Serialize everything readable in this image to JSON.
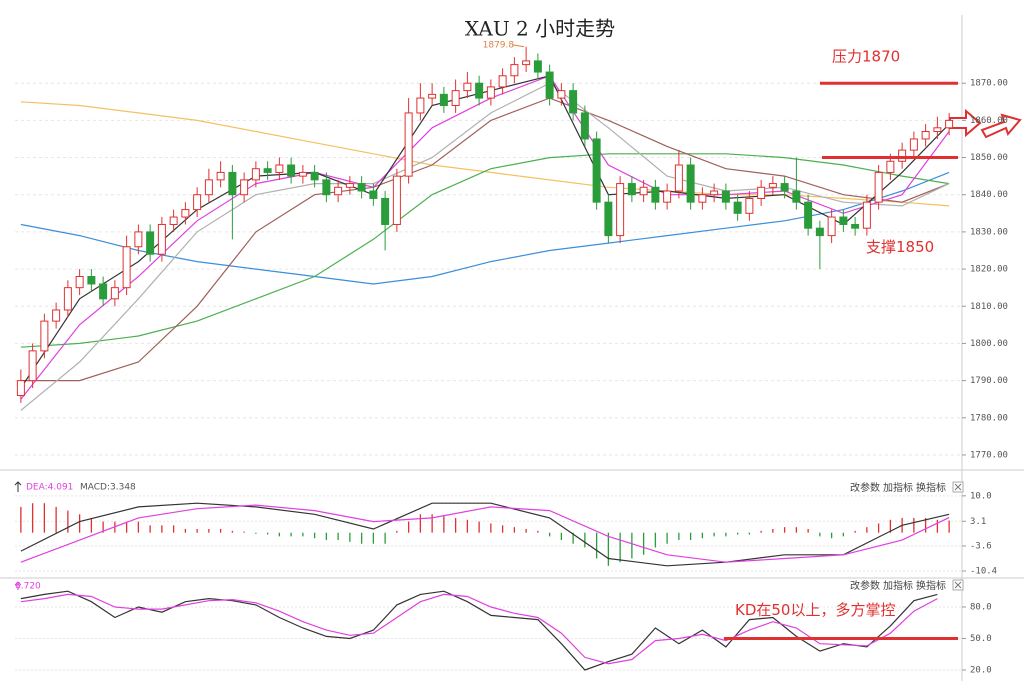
{
  "chart_data": [
    {
      "type": "candlestick",
      "title": "XAU 2 小时走势",
      "xlim": [
        -0.5,
        79.5
      ],
      "ylim": [
        1767.3,
        1887
      ],
      "yticks": [
        {
          "value": 1770,
          "label": "1770.00"
        },
        {
          "value": 1780,
          "label": "1780.00"
        },
        {
          "value": 1790,
          "label": "1790.00"
        },
        {
          "value": 1800,
          "label": "1800.00"
        },
        {
          "value": 1810,
          "label": "1810.00"
        },
        {
          "value": 1820,
          "label": "1820.00"
        },
        {
          "value": 1830,
          "label": "1830.00"
        },
        {
          "value": 1840,
          "label": "1840.00"
        },
        {
          "value": 1850,
          "label": "1850.00"
        },
        {
          "value": 1860,
          "label": "1860.00"
        },
        {
          "value": 1870,
          "label": "1870.00"
        }
      ],
      "grid": true,
      "up_color": "#e03030",
      "down_color": "#2a9d3a",
      "open": [
        1786,
        1790,
        1798,
        1806,
        1809,
        1815,
        1818,
        1816,
        1812,
        1815,
        1826,
        1830,
        1824,
        1832,
        1834,
        1836,
        1840,
        1844,
        1846,
        1840,
        1844,
        1847,
        1846,
        1848,
        1845,
        1846,
        1844,
        1840,
        1842,
        1843,
        1841,
        1839,
        1832,
        1845,
        1862,
        1866,
        1867,
        1864,
        1868,
        1870,
        1866,
        1869,
        1872,
        1875,
        1876,
        1873,
        1866,
        1868,
        1862,
        1855,
        1838,
        1829,
        1843,
        1840,
        1842,
        1838,
        1841,
        1848,
        1838,
        1840,
        1841,
        1838,
        1835,
        1839,
        1842,
        1843,
        1841,
        1838,
        1831,
        1829,
        1834,
        1832,
        1831,
        1838,
        1846,
        1849,
        1852,
        1855,
        1857,
        1858
      ],
      "high": [
        1793,
        1800,
        1808,
        1811,
        1817,
        1820,
        1820,
        1818,
        1817,
        1829,
        1832,
        1832,
        1834,
        1836,
        1838,
        1842,
        1847,
        1849,
        1848,
        1846,
        1849,
        1849,
        1850,
        1850,
        1848,
        1848,
        1846,
        1844,
        1845,
        1845,
        1843,
        1841,
        1847,
        1866,
        1870,
        1870,
        1869,
        1871,
        1873,
        1872,
        1871,
        1874,
        1877,
        1879.8,
        1878,
        1875,
        1870,
        1870,
        1864,
        1857,
        1840,
        1845,
        1845,
        1844,
        1844,
        1843,
        1852,
        1850,
        1842,
        1843,
        1843,
        1840,
        1841,
        1844,
        1845,
        1845,
        1850,
        1840,
        1833,
        1836,
        1836,
        1834,
        1840,
        1848,
        1851,
        1854,
        1857,
        1859,
        1861,
        1862
      ],
      "low": [
        1784,
        1788,
        1796,
        1804,
        1807,
        1813,
        1814,
        1810,
        1810,
        1813,
        1824,
        1822,
        1822,
        1830,
        1832,
        1834,
        1838,
        1842,
        1828,
        1838,
        1842,
        1844,
        1844,
        1843,
        1843,
        1842,
        1838,
        1838,
        1840,
        1839,
        1837,
        1825,
        1830,
        1843,
        1860,
        1864,
        1862,
        1862,
        1866,
        1864,
        1864,
        1867,
        1870,
        1873,
        1871,
        1864,
        1864,
        1860,
        1853,
        1836,
        1827,
        1827,
        1838,
        1838,
        1836,
        1836,
        1839,
        1836,
        1836,
        1838,
        1836,
        1833,
        1833,
        1837,
        1840,
        1839,
        1836,
        1829,
        1820,
        1827,
        1830,
        1829,
        1829,
        1836,
        1844,
        1847,
        1850,
        1853,
        1855,
        1856
      ],
      "close": [
        1790,
        1798,
        1806,
        1809,
        1815,
        1818,
        1816,
        1812,
        1815,
        1826,
        1830,
        1824,
        1832,
        1834,
        1836,
        1840,
        1844,
        1846,
        1840,
        1844,
        1847,
        1846,
        1848,
        1845,
        1846,
        1844,
        1840,
        1842,
        1843,
        1841,
        1839,
        1832,
        1845,
        1862,
        1866,
        1867,
        1864,
        1868,
        1870,
        1866,
        1869,
        1872,
        1875,
        1876,
        1873,
        1866,
        1868,
        1862,
        1855,
        1838,
        1829,
        1843,
        1840,
        1842,
        1838,
        1841,
        1848,
        1838,
        1840,
        1841,
        1838,
        1835,
        1839,
        1842,
        1843,
        1841,
        1838,
        1831,
        1829,
        1834,
        1832,
        1831,
        1838,
        1846,
        1849,
        1852,
        1855,
        1857,
        1858,
        1860
      ],
      "ma_x": [
        0,
        5,
        10,
        15,
        20,
        25,
        30,
        35,
        40,
        45,
        50,
        55,
        60,
        65,
        70,
        75,
        79
      ],
      "series": [
        {
          "color": "#f5c060",
          "values": [
            1865,
            1864,
            1862,
            1860,
            1857,
            1854,
            1851,
            1848,
            1846,
            1844,
            1842,
            1841,
            1840,
            1840,
            1839,
            1838,
            1837
          ]
        },
        {
          "color": "#3a8fd8",
          "values": [
            1832,
            1829,
            1825,
            1822,
            1820,
            1818,
            1816,
            1818,
            1822,
            1825,
            1827,
            1829,
            1831,
            1833,
            1836,
            1841,
            1846
          ]
        },
        {
          "color": "#4caf50",
          "values": [
            1799,
            1800,
            1802,
            1806,
            1812,
            1818,
            1828,
            1840,
            1847,
            1850,
            1851,
            1851,
            1851,
            1850,
            1848,
            1845,
            1843
          ]
        },
        {
          "color": "#a0605a",
          "values": [
            1790,
            1790,
            1795,
            1810,
            1830,
            1840,
            1842,
            1848,
            1860,
            1866,
            1860,
            1853,
            1847,
            1845,
            1840,
            1838,
            1843
          ]
        },
        {
          "color": "#b0b0b0",
          "values": [
            1782,
            1795,
            1812,
            1830,
            1840,
            1843,
            1843,
            1850,
            1862,
            1870,
            1858,
            1845,
            1841,
            1842,
            1838,
            1837,
            1843
          ]
        },
        {
          "color": "#e040e0",
          "values": [
            1785,
            1805,
            1818,
            1833,
            1843,
            1846,
            1842,
            1858,
            1866,
            1872,
            1848,
            1840,
            1840,
            1841,
            1835,
            1840,
            1857
          ]
        },
        {
          "color": "#333333",
          "values": [
            1788,
            1812,
            1822,
            1836,
            1845,
            1846,
            1840,
            1864,
            1868,
            1872,
            1840,
            1841,
            1839,
            1840,
            1832,
            1846,
            1859
          ]
        }
      ],
      "peak_index": 43,
      "resistance": {
        "label": "压力1870",
        "value": 1870
      },
      "support": {
        "label": "支撑1850",
        "value": 1850
      },
      "annotation_color": "#e03030"
    },
    {
      "type": "macd",
      "labels": [
        "DEA:4.091",
        "MACD:3.348"
      ],
      "buttons": [
        "改参数",
        "加指标",
        "换指标"
      ],
      "xlim": [
        -0.5,
        79.5
      ],
      "ylim": [
        -12.3,
        14.3
      ],
      "yticks": [
        {
          "value": 10,
          "label": "10.0"
        },
        3.1,
        -3.6,
        -10.4
      ],
      "histogram": [
        7,
        8,
        8,
        7,
        6,
        5,
        4,
        3,
        3,
        3,
        3,
        2,
        2,
        2,
        1,
        1,
        1,
        1,
        0.5,
        0.3,
        -0.3,
        -0.5,
        -1,
        -1,
        -1,
        -1.5,
        -2,
        -2,
        -2.5,
        -3,
        -3,
        -3,
        0.5,
        3,
        5,
        5,
        4.5,
        4,
        3.5,
        3,
        2.5,
        2,
        1.5,
        1,
        0.5,
        -1,
        -2,
        -3,
        -4,
        -7,
        -9,
        -8,
        -7,
        -6,
        -4,
        -3,
        -2,
        -2,
        -1.5,
        -1,
        -1,
        -0.5,
        -0.5,
        0.5,
        1,
        1.5,
        1.5,
        1,
        -1,
        -1.5,
        -1,
        0.5,
        1.5,
        2.5,
        3.5,
        4,
        4,
        4,
        3.5,
        3.3
      ],
      "x": [
        0,
        5,
        10,
        15,
        20,
        25,
        30,
        35,
        40,
        45,
        50,
        55,
        60,
        65,
        70,
        75,
        79
      ],
      "series": [
        {
          "color": "#333333",
          "values": [
            -5,
            3,
            7,
            8,
            7,
            5,
            1,
            8,
            8,
            4,
            -7,
            -9,
            -8,
            -6,
            -6,
            2,
            5
          ]
        },
        {
          "color": "#e040e0",
          "values": [
            -8,
            -2,
            4,
            6.5,
            7.5,
            6,
            3,
            4,
            7,
            6,
            -1,
            -6,
            -8,
            -7,
            -6,
            -2,
            4.1
          ]
        }
      ],
      "up_color": "#e03030",
      "down_color": "#2a9d3a"
    },
    {
      "type": "kd",
      "labels": [
        "6.720"
      ],
      "buttons": [
        "改参数",
        "加指标",
        "换指标"
      ],
      "xlim": [
        -0.5,
        79.5
      ],
      "ylim": [
        9.5,
        105.7
      ],
      "yticks": [
        {
          "value": 20,
          "label": "20.0"
        },
        {
          "value": 50,
          "label": "50.0"
        },
        {
          "value": 80,
          "label": "80.0"
        }
      ],
      "x": [
        0,
        2,
        4,
        6,
        8,
        10,
        12,
        14,
        16,
        18,
        20,
        22,
        24,
        26,
        28,
        30,
        32,
        34,
        36,
        38,
        40,
        42,
        44,
        46,
        48,
        50,
        52,
        54,
        56,
        58,
        60,
        62,
        64,
        66,
        68,
        70,
        72,
        74,
        76,
        78
      ],
      "series": [
        {
          "color": "#333333",
          "values": [
            88,
            92,
            95,
            85,
            70,
            80,
            75,
            85,
            88,
            86,
            82,
            70,
            60,
            52,
            50,
            58,
            82,
            92,
            95,
            85,
            72,
            70,
            68,
            45,
            20,
            28,
            35,
            60,
            45,
            58,
            42,
            68,
            70,
            52,
            38,
            45,
            42,
            62,
            86,
            92
          ]
        },
        {
          "color": "#e040e0",
          "values": [
            85,
            88,
            92,
            90,
            80,
            78,
            78,
            82,
            86,
            87,
            84,
            76,
            66,
            58,
            53,
            55,
            70,
            85,
            92,
            90,
            80,
            74,
            70,
            55,
            32,
            26,
            30,
            48,
            50,
            54,
            48,
            58,
            66,
            60,
            45,
            44,
            43,
            55,
            76,
            88
          ]
        }
      ],
      "level": {
        "label": "KD在50以上，多方掌控",
        "value": 50
      },
      "annotation_color": "#e03030"
    }
  ]
}
